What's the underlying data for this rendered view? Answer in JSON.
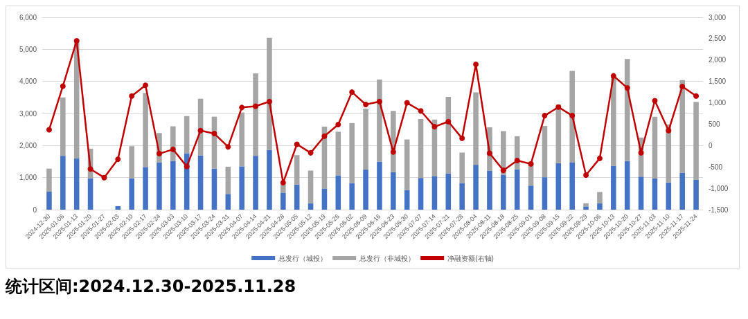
{
  "chart_data": {
    "type": "bar",
    "stacked": true,
    "categories": [
      "2024-12-30",
      "2025-01-06",
      "2025-01-13",
      "2025-01-20",
      "2025-01-27",
      "2025-02-03",
      "2025-02-10",
      "2025-02-17",
      "2025-02-24",
      "2025-03-03",
      "2025-03-10",
      "2025-03-17",
      "2025-03-24",
      "2025-03-31",
      "2025-04-07",
      "2025-04-14",
      "2025-04-21",
      "2025-04-28",
      "2025-05-05",
      "2025-05-12",
      "2025-05-19",
      "2025-05-26",
      "2025-06-02",
      "2025-06-09",
      "2025-06-16",
      "2025-06-23",
      "2025-06-30",
      "2025-07-07",
      "2025-07-14",
      "2025-07-21",
      "2025-07-28",
      "2025-08-04",
      "2025-08-11",
      "2025-08-18",
      "2025-08-25",
      "2025-09-01",
      "2025-09-08",
      "2025-09-15",
      "2025-09-22",
      "2025-09-29",
      "2025-10-06",
      "2025-10-13",
      "2025-10-20",
      "2025-10-27",
      "2025-11-03",
      "2025-11-10",
      "2025-11-17",
      "2025-11-24"
    ],
    "series": [
      {
        "name": "总发行（城投）",
        "color": "#4472c4",
        "values": [
          560,
          1680,
          1600,
          980,
          0,
          110,
          980,
          1330,
          1470,
          1520,
          1760,
          1690,
          1280,
          490,
          1350,
          1680,
          1860,
          530,
          780,
          200,
          660,
          1070,
          830,
          1250,
          1500,
          1170,
          610,
          990,
          1050,
          1130,
          830,
          1400,
          1210,
          1090,
          1260,
          750,
          1010,
          1450,
          1470,
          100,
          200,
          1370,
          1520,
          1030,
          970,
          850,
          1150,
          930
        ]
      },
      {
        "name": "总发行（非城投）",
        "color": "#a5a5a5",
        "values": [
          720,
          1820,
          3720,
          920,
          0,
          0,
          1000,
          2310,
          920,
          1080,
          1160,
          1770,
          1620,
          850,
          1680,
          2570,
          3500,
          270,
          920,
          1020,
          1930,
          1360,
          1870,
          1900,
          2560,
          1910,
          1580,
          1840,
          1760,
          2390,
          950,
          2260,
          1360,
          1360,
          1030,
          750,
          1600,
          1830,
          2860,
          100,
          350,
          2780,
          3180,
          1220,
          1930,
          1810,
          2890,
          2430
        ]
      },
      {
        "name": "净融资额(右轴)",
        "type": "line",
        "axis": "y2",
        "color": "#c00000",
        "values": [
          370,
          1390,
          2450,
          -550,
          -750,
          -320,
          1160,
          1410,
          -190,
          -90,
          -490,
          350,
          280,
          -30,
          890,
          920,
          1030,
          -870,
          30,
          -170,
          220,
          490,
          1250,
          960,
          1030,
          -150,
          1000,
          810,
          440,
          560,
          170,
          1900,
          -180,
          -580,
          -350,
          -430,
          700,
          900,
          700,
          -690,
          -300,
          1630,
          1350,
          -170,
          1050,
          350,
          1380,
          1160
        ]
      }
    ],
    "ylim": [
      0,
      6000
    ],
    "yticks": [
      0,
      {
        "value": 1000,
        "label": "1,000"
      },
      {
        "value": 2000,
        "label": "2,000"
      },
      {
        "value": 3000,
        "label": "3,000"
      },
      {
        "value": 4000,
        "label": "4,000"
      },
      {
        "value": 5000,
        "label": "5,000"
      },
      {
        "value": 6000,
        "label": "6,000"
      }
    ],
    "y2lim": [
      -1500,
      3000
    ],
    "y2ticks": [
      {
        "value": -1500,
        "label": "-1,500"
      },
      {
        "value": -1000,
        "label": "-1,000"
      },
      -500,
      0,
      500,
      {
        "value": 1000,
        "label": "1,000"
      },
      {
        "value": 1500,
        "label": "1,500"
      },
      {
        "value": 2000,
        "label": "2,000"
      },
      {
        "value": 2500,
        "label": "2,500"
      },
      {
        "value": 3000,
        "label": "3,000"
      }
    ],
    "grid": "y",
    "legend": "bottom",
    "marker": "circle",
    "line_style": "solid",
    "annotations": [
      "统计区间:2024.12.30-2025.11.28"
    ]
  }
}
